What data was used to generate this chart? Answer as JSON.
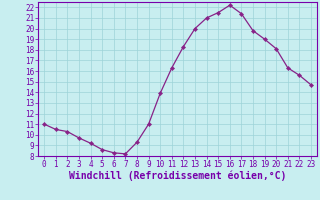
{
  "x": [
    0,
    1,
    2,
    3,
    4,
    5,
    6,
    7,
    8,
    9,
    10,
    11,
    12,
    13,
    14,
    15,
    16,
    17,
    18,
    19,
    20,
    21,
    22,
    23
  ],
  "y": [
    11.0,
    10.5,
    10.3,
    9.7,
    9.2,
    8.6,
    8.3,
    8.2,
    9.3,
    11.0,
    13.9,
    16.3,
    18.3,
    20.0,
    21.0,
    21.5,
    22.2,
    21.4,
    19.8,
    19.0,
    18.1,
    16.3,
    15.6,
    14.7
  ],
  "line_color": "#882288",
  "marker": "D",
  "marker_size": 2.2,
  "bg_color": "#c8eef0",
  "grid_color": "#9dd4d8",
  "xlabel": "Windchill (Refroidissement éolien,°C)",
  "ylim": [
    8,
    22.5
  ],
  "xlim": [
    -0.5,
    23.5
  ],
  "yticks": [
    8,
    9,
    10,
    11,
    12,
    13,
    14,
    15,
    16,
    17,
    18,
    19,
    20,
    21,
    22
  ],
  "xticks": [
    0,
    1,
    2,
    3,
    4,
    5,
    6,
    7,
    8,
    9,
    10,
    11,
    12,
    13,
    14,
    15,
    16,
    17,
    18,
    19,
    20,
    21,
    22,
    23
  ],
  "tick_label_fontsize": 5.5,
  "xlabel_fontsize": 7.0,
  "line_color_spine": "#7700aa",
  "linewidth": 0.9
}
